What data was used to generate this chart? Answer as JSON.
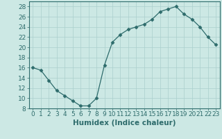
{
  "x": [
    0,
    1,
    2,
    3,
    4,
    5,
    6,
    7,
    8,
    9,
    10,
    11,
    12,
    13,
    14,
    15,
    16,
    17,
    18,
    19,
    20,
    21,
    22,
    23
  ],
  "y": [
    16,
    15.5,
    13.5,
    11.5,
    10.5,
    9.5,
    8.5,
    8.5,
    10,
    16.5,
    21,
    22.5,
    23.5,
    24,
    24.5,
    25.5,
    27,
    27.5,
    28,
    26.5,
    25.5,
    24,
    22,
    20.5
  ],
  "line_color": "#2d6b6b",
  "marker": "D",
  "marker_size": 2.5,
  "background_color": "#cce8e4",
  "grid_color": "#aacfcc",
  "xlabel": "Humidex (Indice chaleur)",
  "xlabel_fontsize": 7.5,
  "tick_fontsize": 6.5,
  "xlim": [
    -0.5,
    23.5
  ],
  "ylim": [
    8,
    29
  ],
  "yticks": [
    8,
    10,
    12,
    14,
    16,
    18,
    20,
    22,
    24,
    26,
    28
  ],
  "xticks": [
    0,
    1,
    2,
    3,
    4,
    5,
    6,
    7,
    8,
    9,
    10,
    11,
    12,
    13,
    14,
    15,
    16,
    17,
    18,
    19,
    20,
    21,
    22,
    23
  ]
}
